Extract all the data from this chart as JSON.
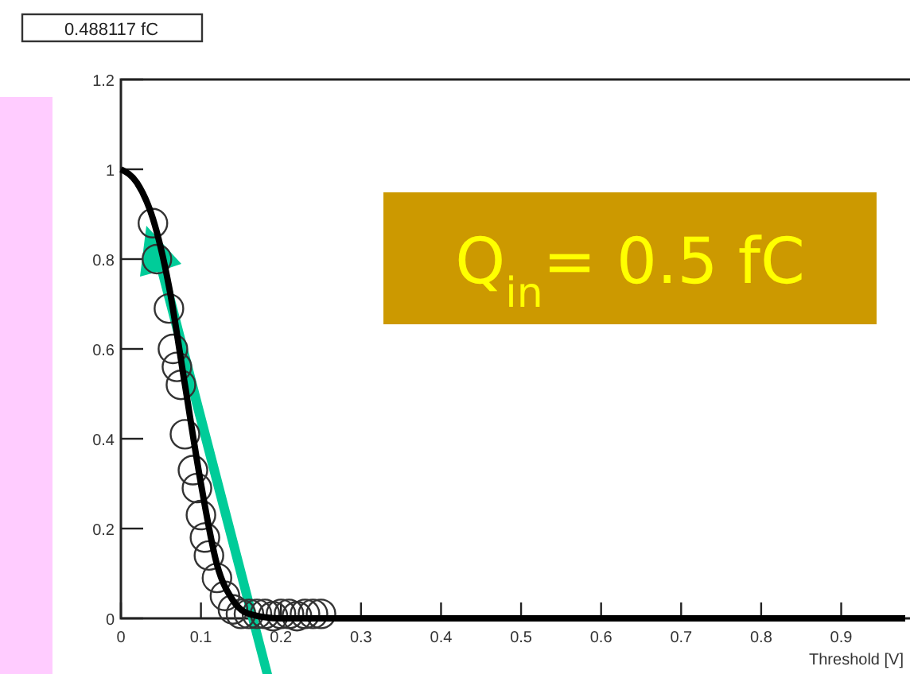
{
  "chart_data": {
    "type": "scatter",
    "title": "0.488117 fC",
    "xlabel": "Threshold [V]",
    "xlim": [
      0,
      0.98
    ],
    "ylim": [
      0,
      1.2
    ],
    "xticks": [
      0,
      0.1,
      0.2,
      0.3,
      0.4,
      0.5,
      0.6,
      0.7,
      0.8,
      0.9
    ],
    "yticks": [
      0,
      0.2,
      0.4,
      0.6,
      0.8,
      1,
      1.2
    ],
    "grid": false,
    "annotations": [
      "Q$_{in}$= 0.5 fC"
    ],
    "series": [
      {
        "marker": "circle",
        "color": "#333333",
        "x": [
          0.04,
          0.045,
          0.06,
          0.065,
          0.07,
          0.075,
          0.08,
          0.09,
          0.095,
          0.1,
          0.105,
          0.11,
          0.12,
          0.13,
          0.14,
          0.15,
          0.16,
          0.17,
          0.18,
          0.19,
          0.2,
          0.21,
          0.22,
          0.23,
          0.24,
          0.25
        ],
        "values": [
          0.88,
          0.8,
          0.69,
          0.6,
          0.56,
          0.52,
          0.41,
          0.33,
          0.29,
          0.23,
          0.18,
          0.14,
          0.09,
          0.05,
          0.02,
          0.01,
          0.01,
          0.01,
          0.01,
          0.005,
          0.01,
          0.01,
          0.005,
          0.01,
          0.01,
          0.01
        ]
      },
      {
        "type": "line",
        "marker": "none",
        "color": "#000000",
        "x": [
          0,
          0.02,
          0.04,
          0.06,
          0.08,
          0.1,
          0.12,
          0.14,
          0.16,
          0.2,
          0.3,
          0.5,
          0.7,
          0.98
        ],
        "values": [
          1,
          0.97,
          0.89,
          0.74,
          0.52,
          0.3,
          0.12,
          0.04,
          0.01,
          0,
          0,
          0,
          0,
          0
        ]
      }
    ]
  }
}
